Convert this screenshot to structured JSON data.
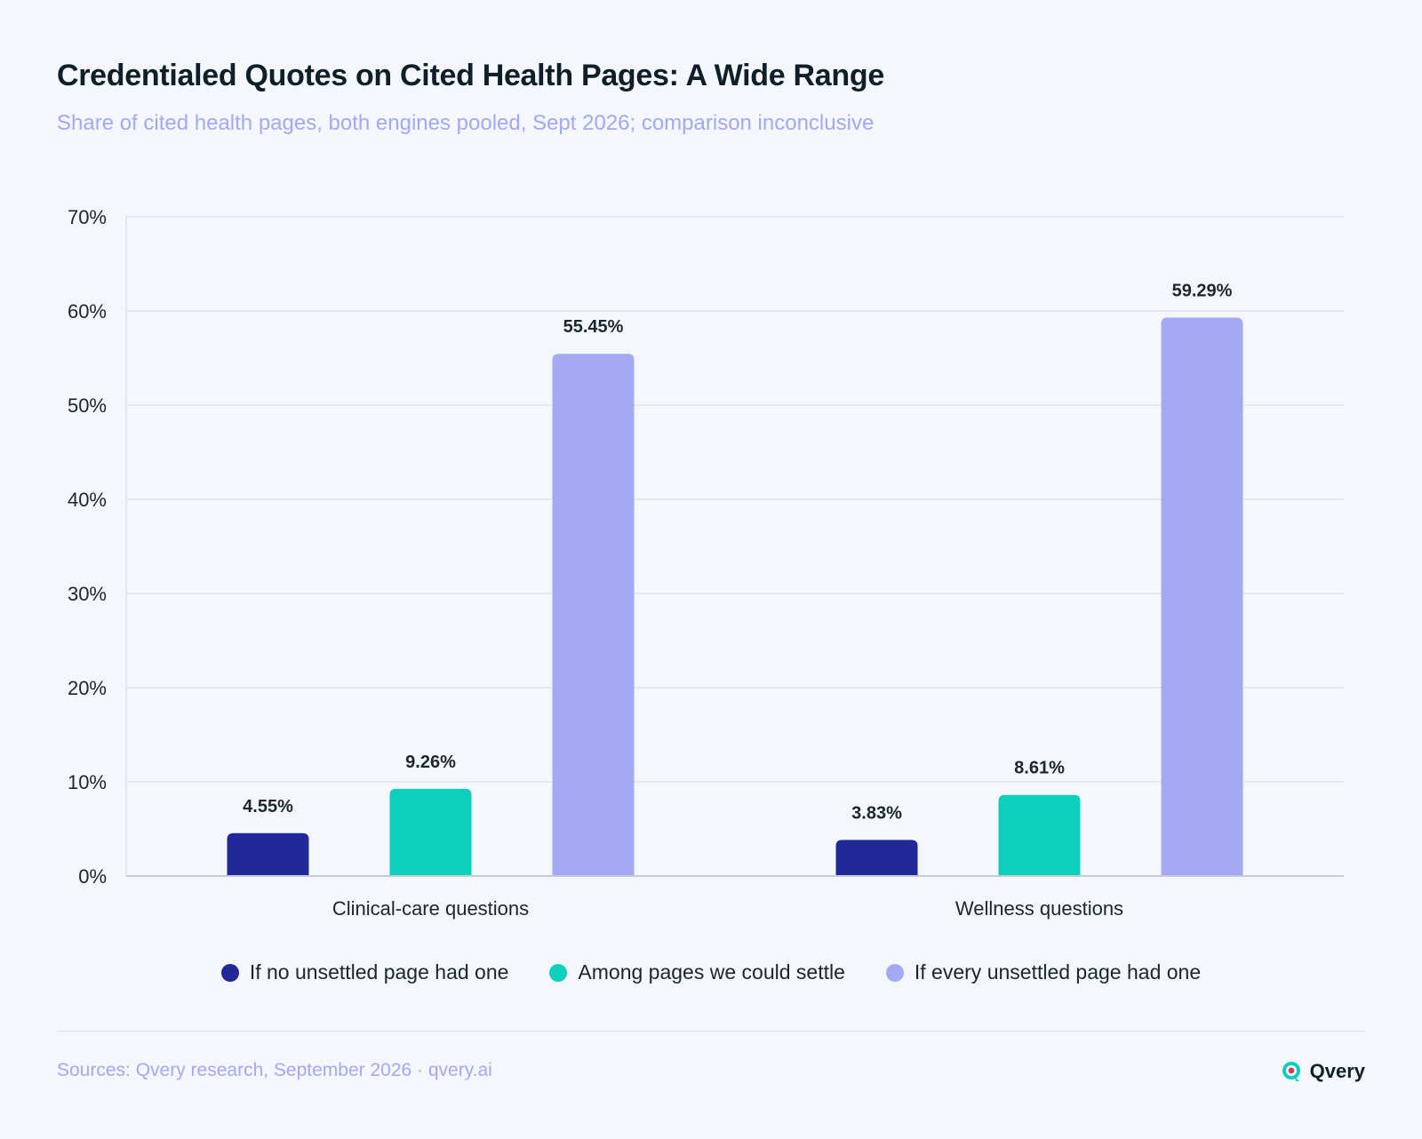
{
  "title": "Credentialed Quotes on Cited Health Pages: A Wide Range",
  "subtitle": "Share of cited health pages, both engines pooled, Sept 2026; comparison inconclusive",
  "footer": {
    "source": "Sources: Qvery research, September 2026 · qvery.ai",
    "brand": "Qvery",
    "brand_icon": "qvery-logo-icon"
  },
  "chart_data": {
    "type": "bar",
    "title": "Credentialed Quotes on Cited Health Pages: A Wide Range",
    "subtitle": "Share of cited health pages, both engines pooled, Sept 2026; comparison inconclusive",
    "categories": [
      "Clinical-care questions",
      "Wellness questions"
    ],
    "series": [
      {
        "name": "If no unsettled page had one",
        "color": "#22279a",
        "values": [
          4.55,
          3.83
        ],
        "labels": [
          "4.55%",
          "3.83%"
        ]
      },
      {
        "name": "Among pages we could settle",
        "color": "#0ccfbc",
        "values": [
          9.26,
          8.61
        ],
        "labels": [
          "9.26%",
          "8.61%"
        ]
      },
      {
        "name": "If every unsettled page had one",
        "color": "#a3a9f4",
        "values": [
          55.45,
          59.29
        ],
        "labels": [
          "55.45%",
          "59.29%"
        ]
      }
    ],
    "ylim": [
      0,
      70
    ],
    "yticks": [
      0,
      10,
      20,
      30,
      40,
      50,
      60,
      70
    ],
    "ytick_labels": [
      "0%",
      "10%",
      "20%",
      "30%",
      "40%",
      "50%",
      "60%",
      "70%"
    ],
    "grid": true,
    "legend_position": "bottom-center",
    "xlabel": "",
    "ylabel": ""
  }
}
